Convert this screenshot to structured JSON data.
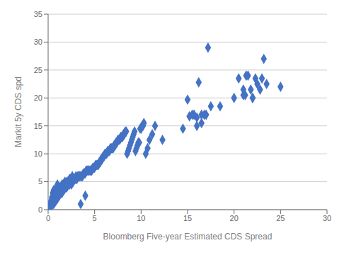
{
  "chart_data": {
    "type": "scatter",
    "xlabel": "Bloomberg Five-year Estimated CDS Spread",
    "ylabel": "Markit 5y CDS spd",
    "xlim": [
      0,
      30
    ],
    "ylim": [
      0,
      35
    ],
    "xticks": [
      0,
      5,
      10,
      15,
      20,
      25,
      30
    ],
    "yticks": [
      0,
      5,
      10,
      15,
      20,
      25,
      30,
      35
    ],
    "color": "#4472C4",
    "marker": "diamond",
    "grid": true,
    "x": [
      0.05,
      0.1,
      0.15,
      0.2,
      0.2,
      0.25,
      0.3,
      0.3,
      0.3,
      0.35,
      0.4,
      0.4,
      0.4,
      0.4,
      0.5,
      0.5,
      0.5,
      0.5,
      0.5,
      0.6,
      0.6,
      0.6,
      0.6,
      0.6,
      0.6,
      0.7,
      0.7,
      0.7,
      0.7,
      0.7,
      0.8,
      0.8,
      0.8,
      0.8,
      0.8,
      0.9,
      0.9,
      0.9,
      0.9,
      0.9,
      1.0,
      1.0,
      1.0,
      1.0,
      1.0,
      1.0,
      1.1,
      1.1,
      1.1,
      1.1,
      1.2,
      1.2,
      1.2,
      1.2,
      1.3,
      1.3,
      1.3,
      1.4,
      1.4,
      1.4,
      1.5,
      1.5,
      1.5,
      1.5,
      1.6,
      1.6,
      1.6,
      1.7,
      1.7,
      1.7,
      1.8,
      1.8,
      1.8,
      1.9,
      1.9,
      2.0,
      2.0,
      2.0,
      2.1,
      2.1,
      2.2,
      2.2,
      2.3,
      2.3,
      2.4,
      2.4,
      2.5,
      2.5,
      2.6,
      2.6,
      2.7,
      2.7,
      2.8,
      2.9,
      3.0,
      3.0,
      3.1,
      3.2,
      3.3,
      3.4,
      3.5,
      3.6,
      3.7,
      3.8,
      3.9,
      4.0,
      4.1,
      4.2,
      4.3,
      4.4,
      4.5,
      4.6,
      4.7,
      4.8,
      4.9,
      5.0,
      5.1,
      5.2,
      5.3,
      5.4,
      5.5,
      5.6,
      5.7,
      5.8,
      5.9,
      6.0,
      6.1,
      6.2,
      6.3,
      6.4,
      6.5,
      6.6,
      6.7,
      6.8,
      6.9,
      7.0,
      7.1,
      7.2,
      7.3,
      7.4,
      7.5,
      7.6,
      7.7,
      7.8,
      7.9,
      8.0,
      8.1,
      8.2,
      8.3,
      8.4,
      8.5,
      8.6,
      8.7,
      8.8,
      8.9,
      9.0,
      9.1,
      9.2,
      9.3,
      9.4,
      9.5,
      9.6,
      9.7,
      9.8,
      9.9,
      10.0,
      10.1,
      10.2,
      10.3,
      10.5,
      10.7,
      10.9,
      11.2,
      11.5,
      12.3,
      3.5,
      4.0,
      14.5,
      15.0,
      15.2,
      15.5,
      15.7,
      16.0,
      16.0,
      16.2,
      16.5,
      16.5,
      16.8,
      17.0,
      17.2,
      17.5,
      18.5,
      20.0,
      20.5,
      21.0,
      21.0,
      21.2,
      21.3,
      21.5,
      21.8,
      22.0,
      22.0,
      22.3,
      22.5,
      22.8,
      23.0,
      23.2,
      23.5,
      25.0
    ],
    "y": [
      0.3,
      0.5,
      0.6,
      0.8,
      1.0,
      1.0,
      0.8,
      1.2,
      1.5,
      1.0,
      0.8,
      1.2,
      1.8,
      2.2,
      1.0,
      1.5,
      2.0,
      2.5,
      3.0,
      1.0,
      1.5,
      2.0,
      2.5,
      3.0,
      3.5,
      1.5,
      2.0,
      2.5,
      3.0,
      3.5,
      1.5,
      2.0,
      2.5,
      3.0,
      3.5,
      2.0,
      2.5,
      3.0,
      3.5,
      4.0,
      2.0,
      2.5,
      3.0,
      3.5,
      4.0,
      4.5,
      2.5,
      3.0,
      3.5,
      4.0,
      2.5,
      3.0,
      3.5,
      4.0,
      3.0,
      3.5,
      4.0,
      3.0,
      3.5,
      4.0,
      3.0,
      3.5,
      4.0,
      4.5,
      3.5,
      4.0,
      4.5,
      3.5,
      4.0,
      4.5,
      4.0,
      4.5,
      5.0,
      4.0,
      4.5,
      4.0,
      4.5,
      5.0,
      4.5,
      5.0,
      4.5,
      5.0,
      4.5,
      5.5,
      5.0,
      5.5,
      4.5,
      5.5,
      5.0,
      6.0,
      5.0,
      5.5,
      5.5,
      5.5,
      5.5,
      6.0,
      5.5,
      6.0,
      6.0,
      6.0,
      6.0,
      6.0,
      6.0,
      6.5,
      6.5,
      6.5,
      7.0,
      7.0,
      7.0,
      7.0,
      7.0,
      7.0,
      7.0,
      7.5,
      7.5,
      7.5,
      8.0,
      8.0,
      8.0,
      8.0,
      8.5,
      8.5,
      9.0,
      9.0,
      9.5,
      9.5,
      10.0,
      10.0,
      10.0,
      10.5,
      10.5,
      10.5,
      11.0,
      11.0,
      11.0,
      11.0,
      11.5,
      11.5,
      12.0,
      12.0,
      12.5,
      12.5,
      12.5,
      13.0,
      13.0,
      13.0,
      13.5,
      13.5,
      14.0,
      14.0,
      10.0,
      10.5,
      11.0,
      11.5,
      12.0,
      12.5,
      13.0,
      13.5,
      14.0,
      10.5,
      11.0,
      11.5,
      12.0,
      12.0,
      14.5,
      14.5,
      15.0,
      15.0,
      15.5,
      10.0,
      11.0,
      12.5,
      13.5,
      15.0,
      12.5,
      1.0,
      2.5,
      14.5,
      19.7,
      16.7,
      17.0,
      17.0,
      15.0,
      16.5,
      22.8,
      17.0,
      15.5,
      17.0,
      17.0,
      29.0,
      18.5,
      18.5,
      20.0,
      23.5,
      20.5,
      21.5,
      20.5,
      24.0,
      24.0,
      21.5,
      20.0,
      20.0,
      23.5,
      22.5,
      21.5,
      23.5,
      27.0,
      22.5,
      22.0
    ]
  }
}
